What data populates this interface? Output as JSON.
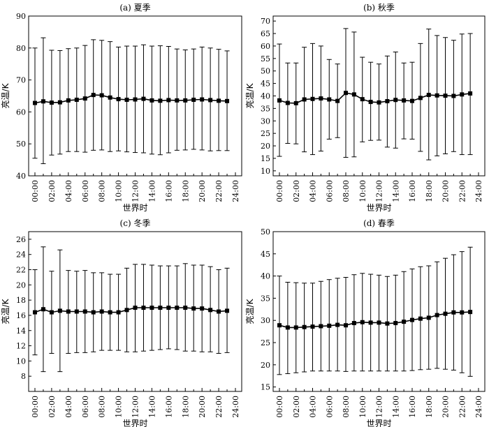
{
  "chart_data": [
    {
      "type": "line",
      "title": "(a) 夏季",
      "xlabel": "世界时",
      "ylabel": "亮温/K",
      "ylim": [
        40,
        90
      ],
      "yticks": [
        40,
        50,
        60,
        70,
        80,
        90
      ],
      "xticks": [
        "00:00",
        "02:00",
        "04:00",
        "06:00",
        "08:00",
        "10:00",
        "12:00",
        "14:00",
        "16:00",
        "18:00",
        "20:00",
        "22:00",
        "24:00"
      ],
      "x": [
        0,
        1,
        2,
        3,
        4,
        5,
        6,
        7,
        8,
        9,
        10,
        11,
        12,
        13,
        14,
        15,
        16,
        17,
        18,
        19,
        20,
        21,
        22,
        23
      ],
      "series": [
        {
          "values": [
            62.8,
            63.3,
            62.9,
            63.0,
            63.6,
            63.8,
            64.2,
            65.3,
            65.2,
            64.5,
            64.0,
            63.8,
            63.9,
            64.1,
            63.6,
            63.5,
            63.7,
            63.6,
            63.6,
            63.8,
            63.9,
            63.7,
            63.5,
            63.4
          ],
          "upper": [
            80.0,
            83.2,
            79.3,
            79.2,
            79.8,
            80.0,
            80.8,
            82.6,
            82.4,
            82.0,
            80.3,
            80.6,
            80.6,
            81.0,
            80.6,
            80.7,
            80.5,
            79.7,
            79.4,
            79.7,
            80.3,
            80.0,
            79.6,
            79.1
          ],
          "lower": [
            45.5,
            43.8,
            46.5,
            46.8,
            47.6,
            47.6,
            47.4,
            48.0,
            48.1,
            47.6,
            47.8,
            47.5,
            47.3,
            47.2,
            46.8,
            46.6,
            47.2,
            48.0,
            48.1,
            48.3,
            48.1,
            47.8,
            47.9,
            47.9
          ]
        }
      ]
    },
    {
      "type": "line",
      "title": "(b) 秋季",
      "xlabel": "世界时",
      "ylabel": "亮温/K",
      "ylim": [
        8,
        72
      ],
      "yticks": [
        10,
        15,
        20,
        25,
        30,
        35,
        40,
        45,
        50,
        55,
        60,
        65,
        70
      ],
      "xticks": [
        "00:00",
        "02:00",
        "04:00",
        "06:00",
        "08:00",
        "10:00",
        "12:00",
        "14:00",
        "16:00",
        "18:00",
        "20:00",
        "22:00",
        "24:00"
      ],
      "x": [
        0,
        1,
        2,
        3,
        4,
        5,
        6,
        7,
        8,
        9,
        10,
        11,
        12,
        13,
        14,
        15,
        16,
        17,
        18,
        19,
        20,
        21,
        22,
        23
      ],
      "series": [
        {
          "values": [
            38.2,
            37.2,
            37.1,
            38.6,
            38.8,
            39.0,
            38.6,
            38.0,
            41.2,
            40.6,
            38.7,
            37.6,
            37.4,
            37.9,
            38.4,
            38.2,
            38.0,
            39.2,
            40.4,
            40.2,
            40.1,
            40.0,
            40.6,
            41.0
          ],
          "upper": [
            60.8,
            53.2,
            53.2,
            59.5,
            61.0,
            60.0,
            54.6,
            52.8,
            67.0,
            65.6,
            55.5,
            53.5,
            52.8,
            56.0,
            57.6,
            53.2,
            53.5,
            61.0,
            66.8,
            64.2,
            63.4,
            62.3,
            64.8,
            65.0
          ],
          "lower": [
            15.8,
            21.0,
            20.8,
            17.6,
            16.5,
            17.9,
            22.7,
            23.3,
            15.4,
            15.6,
            21.6,
            22.2,
            22.3,
            19.5,
            19.1,
            22.8,
            22.7,
            17.8,
            14.4,
            16.0,
            16.8,
            17.7,
            16.5,
            16.5
          ]
        }
      ]
    },
    {
      "type": "line",
      "title": "(c) 冬季",
      "xlabel": "世界时",
      "ylabel": "亮温/K",
      "ylim": [
        6,
        27
      ],
      "yticks": [
        8,
        10,
        12,
        14,
        16,
        18,
        20,
        22,
        24,
        26
      ],
      "xticks": [
        "00:00",
        "02:00",
        "04:00",
        "06:00",
        "08:00",
        "10:00",
        "12:00",
        "14:00",
        "16:00",
        "18:00",
        "20:00",
        "22:00",
        "24:00"
      ],
      "x": [
        0,
        1,
        2,
        3,
        4,
        5,
        6,
        7,
        8,
        9,
        10,
        11,
        12,
        13,
        14,
        15,
        16,
        17,
        18,
        19,
        20,
        21,
        22,
        23
      ],
      "series": [
        {
          "values": [
            16.4,
            16.8,
            16.4,
            16.6,
            16.5,
            16.5,
            16.5,
            16.4,
            16.5,
            16.4,
            16.4,
            16.7,
            17.0,
            17.0,
            17.0,
            17.0,
            17.0,
            17.0,
            17.0,
            16.9,
            16.9,
            16.7,
            16.5,
            16.6
          ],
          "upper": [
            22.0,
            25.0,
            21.8,
            24.6,
            21.9,
            21.8,
            21.9,
            21.6,
            21.6,
            21.4,
            21.4,
            22.2,
            22.7,
            22.7,
            22.6,
            22.5,
            22.5,
            22.5,
            22.8,
            22.6,
            22.6,
            22.4,
            22.0,
            22.2
          ],
          "lower": [
            10.8,
            8.6,
            11.0,
            8.6,
            11.0,
            11.1,
            11.1,
            11.2,
            11.4,
            11.4,
            11.4,
            11.2,
            11.2,
            11.3,
            11.4,
            11.5,
            11.6,
            11.5,
            11.3,
            11.3,
            11.2,
            11.2,
            11.0,
            11.1
          ]
        }
      ]
    },
    {
      "type": "line",
      "title": "(d) 春季",
      "xlabel": "世界时",
      "ylabel": "亮温/K",
      "ylim": [
        14,
        50
      ],
      "yticks": [
        15,
        20,
        25,
        30,
        35,
        40,
        45,
        50
      ],
      "xticks": [
        "00:00",
        "02:00",
        "04:00",
        "06:00",
        "08:00",
        "10:00",
        "12:00",
        "14:00",
        "16:00",
        "18:00",
        "20:00",
        "22:00",
        "24:00"
      ],
      "x": [
        0,
        1,
        2,
        3,
        4,
        5,
        6,
        7,
        8,
        9,
        10,
        11,
        12,
        13,
        14,
        15,
        16,
        17,
        18,
        19,
        20,
        21,
        22,
        23
      ],
      "series": [
        {
          "values": [
            28.9,
            28.4,
            28.4,
            28.5,
            28.6,
            28.7,
            28.8,
            29.0,
            28.9,
            29.4,
            29.6,
            29.5,
            29.5,
            29.3,
            29.4,
            29.7,
            30.1,
            30.4,
            30.6,
            31.2,
            31.5,
            31.8,
            31.8,
            31.9
          ],
          "upper": [
            40.0,
            38.6,
            38.5,
            38.4,
            38.4,
            38.8,
            39.2,
            39.5,
            39.7,
            40.3,
            40.6,
            40.4,
            40.2,
            39.9,
            40.2,
            41.0,
            41.6,
            42.1,
            42.3,
            43.2,
            44.0,
            44.8,
            45.5,
            46.5
          ],
          "lower": [
            17.8,
            18.0,
            18.2,
            18.4,
            18.6,
            18.6,
            18.6,
            18.6,
            18.5,
            18.6,
            18.6,
            18.6,
            18.6,
            18.6,
            18.6,
            18.6,
            18.7,
            18.9,
            19.0,
            19.2,
            19.0,
            18.8,
            18.2,
            17.4
          ]
        }
      ]
    }
  ]
}
